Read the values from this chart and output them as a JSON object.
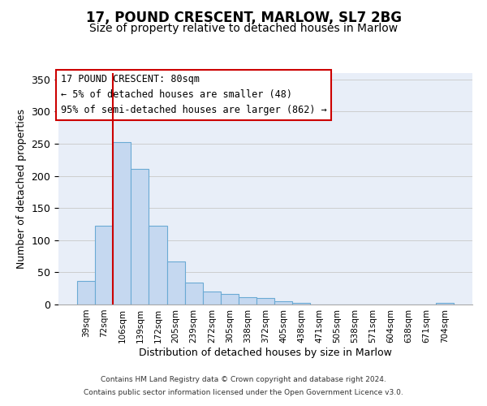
{
  "title": "17, POUND CRESCENT, MARLOW, SL7 2BG",
  "subtitle": "Size of property relative to detached houses in Marlow",
  "xlabel": "Distribution of detached houses by size in Marlow",
  "ylabel": "Number of detached properties",
  "bar_labels": [
    "39sqm",
    "72sqm",
    "106sqm",
    "139sqm",
    "172sqm",
    "205sqm",
    "239sqm",
    "272sqm",
    "305sqm",
    "338sqm",
    "372sqm",
    "405sqm",
    "438sqm",
    "471sqm",
    "505sqm",
    "538sqm",
    "571sqm",
    "604sqm",
    "638sqm",
    "671sqm",
    "704sqm"
  ],
  "bar_values": [
    37,
    123,
    252,
    211,
    123,
    67,
    34,
    20,
    16,
    12,
    10,
    5,
    2,
    0,
    0,
    0,
    0,
    0,
    0,
    0,
    3
  ],
  "bar_color": "#c5d8f0",
  "bar_edgecolor": "#6aaad4",
  "vline_x": 1.5,
  "vline_color": "#cc0000",
  "annotation_title": "17 POUND CRESCENT: 80sqm",
  "annotation_line1": "← 5% of detached houses are smaller (48)",
  "annotation_line2": "95% of semi-detached houses are larger (862) →",
  "annotation_box_facecolor": "#ffffff",
  "annotation_border_color": "#cc0000",
  "ylim": [
    0,
    360
  ],
  "yticks": [
    0,
    50,
    100,
    150,
    200,
    250,
    300,
    350
  ],
  "background_color": "#e8eef8",
  "footer1": "Contains HM Land Registry data © Crown copyright and database right 2024.",
  "footer2": "Contains public sector information licensed under the Open Government Licence v3.0.",
  "title_fontsize": 12,
  "subtitle_fontsize": 10
}
